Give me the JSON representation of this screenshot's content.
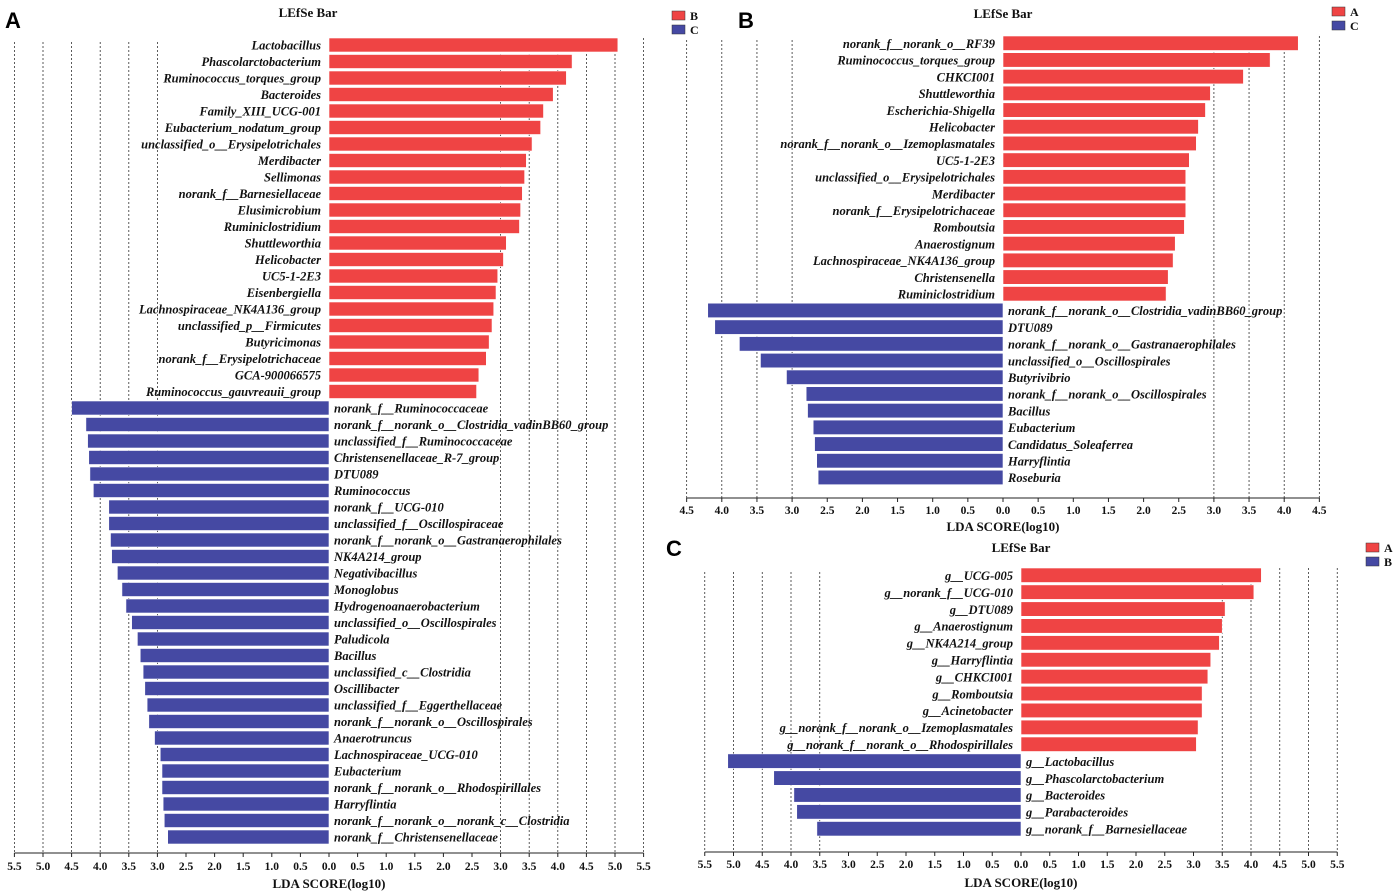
{
  "chart_data": [
    {
      "type": "bar",
      "orientation": "horizontal-diverging",
      "panel_label": "A",
      "title": "LEfSe Bar",
      "xlabel": "LDA SCORE(log10)",
      "ylabel": "",
      "xticks": [
        "5.5",
        "5.0",
        "4.5",
        "4.0",
        "3.5",
        "3.0",
        "2.5",
        "2.0",
        "1.5",
        "1.0",
        "0.5",
        "0.0",
        "0.5",
        "1.0",
        "1.5",
        "2.0",
        "2.5",
        "3.0",
        "3.5",
        "4.0",
        "4.5",
        "5.0",
        "5.5"
      ],
      "xlim": [
        -5.5,
        5.5
      ],
      "grid": "dashed vertical at 3.0, 3.5, 4.0, 4.5, 5.0, 5.5",
      "legend": [
        {
          "name": "B",
          "color": "#ef4444"
        },
        {
          "name": "C",
          "color": "#4549a3"
        }
      ],
      "series": [
        {
          "name": "B",
          "color": "#ef4444",
          "categories": [
            "Lactobacillus",
            "Phascolarctobacterium",
            "Ruminococcus_torques_group",
            "Bacteroides",
            "Family_XIII_UCG-001",
            "Eubacterium_nodatum_group",
            "unclassified_o__Erysipelotrichales",
            "Merdibacter",
            "Sellimonas",
            "norank_f__Barnesiellaceae",
            "Elusimicrobium",
            "Ruminiclostridium",
            "Shuttleworthia",
            "Helicobacter",
            "UC5-1-2E3",
            "Eisenbergiella",
            "Lachnospiraceae_NK4A136_group",
            "unclassified_p__Firmicutes",
            "Butyricimonas",
            "norank_f__Erysipelotrichaceae",
            "GCA-900066575",
            "Ruminococcus_gauvreauii_group"
          ],
          "values": [
            5.05,
            4.25,
            4.15,
            3.92,
            3.75,
            3.7,
            3.55,
            3.45,
            3.42,
            3.38,
            3.35,
            3.33,
            3.1,
            3.05,
            2.95,
            2.92,
            2.88,
            2.85,
            2.8,
            2.75,
            2.62,
            2.58
          ]
        },
        {
          "name": "C",
          "color": "#4549a3",
          "categories": [
            "norank_f__Ruminococcaceae",
            "norank_f__norank_o__Clostridia_vadinBB60_group",
            "unclassified_f__Ruminococcaceae",
            "Christensenellaceae_R-7_group",
            "DTU089",
            "Ruminococcus",
            "norank_f__UCG-010",
            "unclassified_f__Oscillospiraceae",
            "norank_f__norank_o__Gastranaerophilales",
            "NK4A214_group",
            "Negativibacillus",
            "Monoglobus",
            "Hydrogenoanaerobacterium",
            "unclassified_o__Oscillospirales",
            "Paludicola",
            "Bacillus",
            "unclassified_c__Clostridia",
            "Oscillibacter",
            "unclassified_f__Eggerthellaceae",
            "norank_f__norank_o__Oscillospirales",
            "Anaerotruncus",
            "Lachnospiraceae_UCG-010",
            "Eubacterium",
            "norank_f__norank_o__Rhodospirillales",
            "Harryflintia",
            "norank_f__norank_o__norank_c__Clostridia",
            "norank_f__Christensenellaceae"
          ],
          "values": [
            -4.5,
            -4.25,
            -4.22,
            -4.2,
            -4.18,
            -4.12,
            -3.85,
            -3.85,
            -3.82,
            -3.8,
            -3.7,
            -3.62,
            -3.55,
            -3.45,
            -3.35,
            -3.3,
            -3.25,
            -3.22,
            -3.18,
            -3.15,
            -3.05,
            -2.95,
            -2.92,
            -2.92,
            -2.9,
            -2.88,
            -2.82
          ]
        }
      ]
    },
    {
      "type": "bar",
      "orientation": "horizontal-diverging",
      "panel_label": "B",
      "title": "LEfSe Bar",
      "xlabel": "LDA SCORE(log10)",
      "ylabel": "",
      "xticks": [
        "4.5",
        "4.0",
        "3.5",
        "3.0",
        "2.5",
        "2.0",
        "1.5",
        "1.0",
        "0.5",
        "0.0",
        "0.5",
        "1.0",
        "1.5",
        "2.0",
        "2.5",
        "3.0",
        "3.5",
        "4.0",
        "4.5"
      ],
      "xlim": [
        -4.5,
        4.5
      ],
      "grid": "dashed vertical at 3.0, 3.5, 4.0, 4.5",
      "legend": [
        {
          "name": "A",
          "color": "#ef4444"
        },
        {
          "name": "C",
          "color": "#4549a3"
        }
      ],
      "series": [
        {
          "name": "A",
          "color": "#ef4444",
          "categories": [
            "norank_f__norank_o__RF39",
            "Ruminococcus_torques_group",
            "CHKCI001",
            "Shuttleworthia",
            "Escherichia-Shigella",
            "Helicobacter",
            "norank_f__norank_o__Izemoplasmatales",
            "UC5-1-2E3",
            "unclassified_o__Erysipelotrichales",
            "Merdibacter",
            "norank_f__Erysipelotrichaceae",
            "Romboutsia",
            "Anaerostignum",
            "Lachnospiraceae_NK4A136_group",
            "Christensenella",
            "Ruminiclostridium"
          ],
          "values": [
            4.2,
            3.8,
            3.42,
            2.95,
            2.88,
            2.78,
            2.75,
            2.65,
            2.6,
            2.6,
            2.6,
            2.58,
            2.45,
            2.42,
            2.35,
            2.32
          ]
        },
        {
          "name": "C",
          "color": "#4549a3",
          "categories": [
            "norank_f__norank_o__Clostridia_vadinBB60_group",
            "DTU089",
            "norank_f__norank_o__Gastranaerophilales",
            "unclassified_o__Oscillospirales",
            "Butyrivibrio",
            "norank_f__norank_o__Oscillospirales",
            "Bacillus",
            "Eubacterium",
            "Candidatus_Soleaferrea",
            "Harryflintia",
            "Roseburia"
          ],
          "values": [
            -4.2,
            -4.1,
            -3.75,
            -3.45,
            -3.08,
            -2.8,
            -2.78,
            -2.7,
            -2.68,
            -2.65,
            -2.63
          ]
        }
      ]
    },
    {
      "type": "bar",
      "orientation": "horizontal-diverging",
      "panel_label": "C",
      "title": "LEfSe Bar",
      "xlabel": "LDA SCORE(log10)",
      "ylabel": "",
      "xticks": [
        "5.5",
        "5.0",
        "4.5",
        "4.0",
        "3.5",
        "3.0",
        "2.5",
        "2.0",
        "1.5",
        "1.0",
        "0.5",
        "0.0",
        "0.5",
        "1.0",
        "1.5",
        "2.0",
        "2.5",
        "3.0",
        "3.5",
        "4.0",
        "4.5",
        "5.0",
        "5.5"
      ],
      "xlim": [
        -5.5,
        5.5
      ],
      "grid": "dashed vertical at 3.5, 4.0, 4.5, 5.0, 5.5",
      "legend": [
        {
          "name": "A",
          "color": "#ef4444"
        },
        {
          "name": "B",
          "color": "#4549a3"
        }
      ],
      "series": [
        {
          "name": "A",
          "color": "#ef4444",
          "categories": [
            "g__UCG-005",
            "g__norank_f__UCG-010",
            "g__DTU089",
            "g__Anaerostignum",
            "g__NK4A214_group",
            "g__Harryflintia",
            "g__CHKCI001",
            "g__Romboutsia",
            "g__Acinetobacter",
            "g__norank_f__norank_o__Izemoplasmatales",
            "g__norank_f__norank_o__Rhodospirillales"
          ],
          "values": [
            4.18,
            4.05,
            3.55,
            3.5,
            3.45,
            3.3,
            3.25,
            3.15,
            3.15,
            3.08,
            3.05
          ]
        },
        {
          "name": "B",
          "color": "#4549a3",
          "categories": [
            "g__Lactobacillus",
            "g__Phascolarctobacterium",
            "g__Bacteroides",
            "g__Parabacteroides",
            "g__norank_f__Barnesiellaceae"
          ],
          "values": [
            -5.1,
            -4.3,
            -3.95,
            -3.9,
            -3.55
          ]
        }
      ]
    }
  ]
}
